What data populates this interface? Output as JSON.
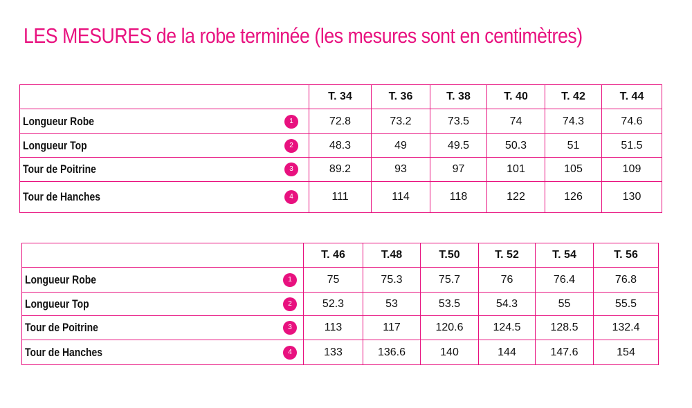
{
  "title": "LES MESURES de la robe terminée (les mesures sont en centimètres)",
  "tables": [
    {
      "sizes": [
        "T. 34",
        "T. 36",
        "T. 38",
        "T. 40",
        "T. 42",
        "T. 44"
      ],
      "rows": [
        {
          "label": "Longueur Robe",
          "badge": "1",
          "values": [
            "72.8",
            "73.2",
            "73.5",
            "74",
            "74.3",
            "74.6"
          ]
        },
        {
          "label": "Longueur Top",
          "badge": "2",
          "values": [
            "48.3",
            "49",
            "49.5",
            "50.3",
            "51",
            "51.5"
          ]
        },
        {
          "label": "Tour de Poitrine",
          "badge": "3",
          "values": [
            "89.2",
            "93",
            "97",
            "101",
            "105",
            "109"
          ]
        },
        {
          "label": "Tour de Hanches",
          "badge": "4",
          "values": [
            "111",
            "114",
            "118",
            "122",
            "126",
            "130"
          ]
        }
      ]
    },
    {
      "sizes": [
        "T. 46",
        "T.48",
        "T.50",
        "T. 52",
        "T. 54",
        "T. 56"
      ],
      "rows": [
        {
          "label": "Longueur Robe",
          "badge": "1",
          "values": [
            "75",
            "75.3",
            "75.7",
            "76",
            "76.4",
            "76.8"
          ]
        },
        {
          "label": "Longueur Top",
          "badge": "2",
          "values": [
            "52.3",
            "53",
            "53.5",
            "54.3",
            "55",
            "55.5"
          ]
        },
        {
          "label": "Tour de Poitrine",
          "badge": "3",
          "values": [
            "113",
            "117",
            "120.6",
            "124.5",
            "128.5",
            "132.4"
          ]
        },
        {
          "label": "Tour de Hanches",
          "badge": "4",
          "values": [
            "133",
            "136.6",
            "140",
            "144",
            "147.6",
            "154"
          ]
        }
      ]
    }
  ],
  "colors": {
    "accent": "#e8117f",
    "text": "#111111",
    "background": "#ffffff"
  }
}
